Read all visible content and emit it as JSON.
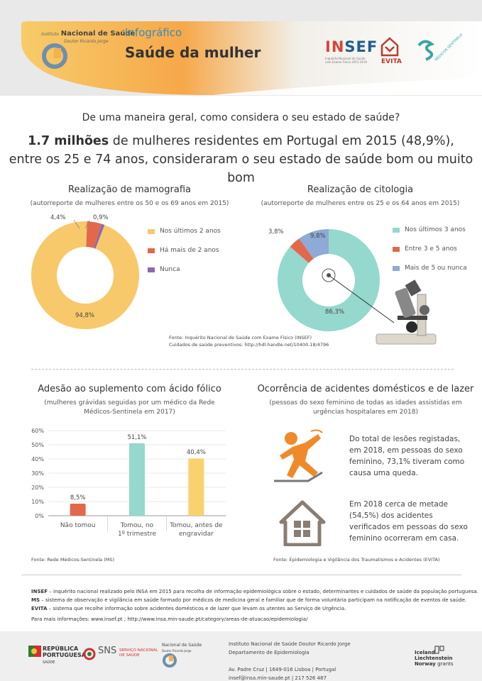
{
  "header": {
    "institute_small": "Instituto",
    "institute_name": "Nacional de Saúde",
    "institute_sub": "Doutor Ricardo Jorge",
    "kicker": "Infográfico",
    "title": "Saúde da mulher",
    "insef_logo_a": "IN",
    "insef_logo_b": "SEF",
    "insef_sub": "Inquérito Nacional de Saúde com Exame Físico 2015-2016",
    "evita_label": "EVITA",
    "ms_label": "MÉDICOS SENTINELA",
    "colors": {
      "orange": "#f4a23c",
      "yellow": "#f6c55a",
      "blue": "#3a8bb7"
    }
  },
  "intro": {
    "question": "De uma maneira geral, como considera o seu estado de saúde?",
    "highlight": "1.7 milhões",
    "line1_rest": " de mulheres residentes em Portugal em 2015 (48,9%),",
    "line2": "entre os 25 e 74 anos, consideraram o seu estado de saúde bom ou muito bom"
  },
  "mamografia": {
    "title": "Realização de mamografia",
    "subtitle": "(autorreporte de mulheres entre os 50 e os 69 anos em 2015)"
  },
  "citologia": {
    "title": "Realização de citologia",
    "subtitle": "(autorreporte de mulheres entre os 25 e os 64 anos em 2015)"
  },
  "insef_source": {
    "line1": "Fonte: Inquérito Nacional de Saúde com Exame Físico (INSEF)",
    "line2": "Cuidados de saúde preventivos:  http://hdl.handle.net/10400.18/4796"
  },
  "acido_folico": {
    "title": "Adesão ao suplemento com ácido fólico",
    "subtitle1": "(mulheres grávidas seguidas por um médico da Rede",
    "subtitle2": "Médicos-Sentinela em 2017)",
    "source": "Fonte: Rede Médicos-Sentinela (MS)"
  },
  "acidentes": {
    "title": "Ocorrência de acidentes domésticos e de lazer",
    "subtitle1": "(pessoas do sexo feminino de todas as idades assistidas em",
    "subtitle2": "urgências hospitalares em 2018)",
    "fall_text": [
      "Do total de lesões registadas,",
      "em 2018, em pessoas do sexo",
      "feminino, 73,1% tiveram como",
      "causa uma queda."
    ],
    "home_text": [
      "Em 2018 cerca de metade",
      "(54,5%) dos acidentes",
      "verificados em pessoas do sexo",
      "feminino ocorreram em casa."
    ],
    "source": "Fonte: Epidemiologia e Vigilância dos Traumatismos e Acidentes (EVITA)",
    "icons": [
      "falling-person-icon",
      "house-icon"
    ]
  },
  "footnotes": {
    "insef_label": "INSEF",
    "insef_text": " – inquérito nacional realizado pelo INSA em 2015 para recolha de informação epidemiológica sobre o estado, determinantes e cuidados de saúde da população portuguesa.",
    "ms_label": "MS",
    "ms_text": " – sistema de observação e vigilância em saúde formado por médicos de medicina geral e familiar que de forma voluntária participam na notificação de eventos de saúde.",
    "evita_label": "EVITA",
    "evita_text": " – sistema que recolhe informação sobre acidentes domésticos e de lazer que levam os utentes ao Serviço de Urgência.",
    "more_info": "Para mais informações: www.insef.pt ; http://www.insa.min-saude.pt/category/areas-de-atuacao/epidemiologia/"
  },
  "footer": {
    "rp_line1": "REPÚBLICA",
    "rp_line2": "PORTUGUESA",
    "rp_line3": "SAÚDE",
    "sns": "SNS",
    "sns_sub1": "SERVIÇO NACIONAL",
    "sns_sub2": "DE SAÚDE",
    "insa_line1": "Instituto Nacional de Saúde Doutor Ricardo Jorge",
    "insa_line2": "Departamento de Epidemiologia",
    "address": "Av. Padre Cruz  |  1649-016 Lisboa  |  Portugal",
    "contact": "insef@insa.min-saude.pt  |  217 526 487",
    "eea1": "Iceland",
    "eea2": "Liechtenstein",
    "eea3": "Norway",
    "eea3b": "grants"
  },
  "chart_data": [
    {
      "type": "pie",
      "title": "Realização de mamografia",
      "categories": [
        "Nos últimos 2 anos",
        "Há mais de 2 anos",
        "Nunca"
      ],
      "values": [
        94.8,
        4.4,
        0.9
      ],
      "labels": [
        "94,8%",
        "4,4%",
        "0,9%"
      ],
      "colors": [
        "#f8c96a",
        "#e2684c",
        "#8a6aad"
      ],
      "legend": "right"
    },
    {
      "type": "pie",
      "title": "Realização de citologia",
      "categories": [
        "Nos últimos 3 anos",
        "Entre 3 e 5 anos",
        "Mais de 5 ou nunca"
      ],
      "values": [
        86.3,
        3.8,
        9.8
      ],
      "labels": [
        "86,3%",
        "3,8%",
        "9,8%"
      ],
      "colors": [
        "#95d8cd",
        "#e2684c",
        "#8eaad6"
      ],
      "legend": "right"
    },
    {
      "type": "bar",
      "title": "Adesão ao suplemento com ácido fólico",
      "categories": [
        "Não tomou",
        "Tomou, no 1º trimestre",
        "Tomou, antes de engravidar"
      ],
      "category_lines": [
        [
          "Não tomou"
        ],
        [
          "Tomou, no",
          "1º trimestre"
        ],
        [
          "Tomou, antes de",
          "engravidar"
        ]
      ],
      "values": [
        8.5,
        51.1,
        40.4
      ],
      "labels": [
        "8,5%",
        "51,1%",
        "40,4%"
      ],
      "colors": [
        "#e2684c",
        "#95d8cd",
        "#f8d26f"
      ],
      "yticks": [
        "0%",
        "10%",
        "20%",
        "30%",
        "40%",
        "50%",
        "60%"
      ],
      "ylim": [
        0,
        60
      ]
    }
  ]
}
